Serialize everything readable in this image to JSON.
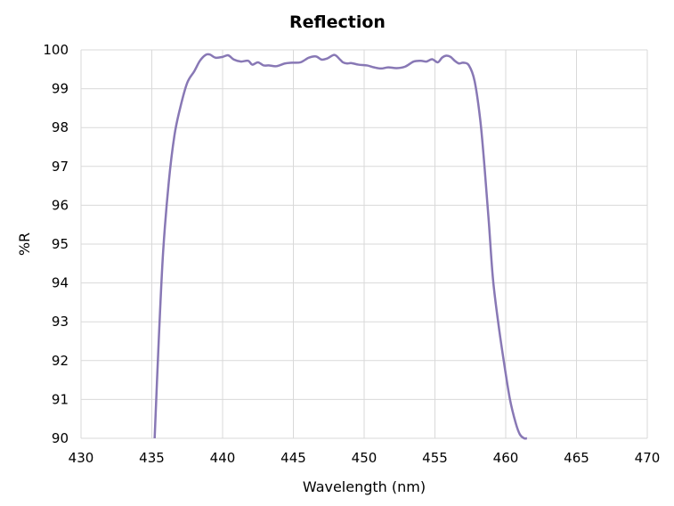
{
  "chart_data": {
    "type": "line",
    "title": "Reflection",
    "xlabel": "Wavelength (nm)",
    "ylabel": "%R",
    "xlim": [
      430,
      470
    ],
    "ylim": [
      90,
      100
    ],
    "xticks": [
      430,
      435,
      440,
      445,
      450,
      455,
      460,
      465,
      470
    ],
    "yticks": [
      90,
      91,
      92,
      93,
      94,
      95,
      96,
      97,
      98,
      99,
      100
    ],
    "grid": true,
    "legend": "none",
    "series": [
      {
        "color": "#8878b5",
        "x": [
          435.2,
          435.5,
          435.8,
          436.2,
          436.6,
          437.0,
          437.5,
          438.0,
          438.4,
          438.8,
          439.1,
          439.5,
          440.0,
          440.4,
          440.8,
          441.3,
          441.8,
          442.1,
          442.5,
          442.9,
          443.3,
          443.8,
          444.4,
          444.9,
          445.5,
          446.1,
          446.6,
          447.0,
          447.4,
          447.9,
          448.3,
          448.5,
          448.8,
          449.1,
          449.6,
          450.2,
          450.7,
          451.2,
          451.7,
          452.3,
          452.9,
          453.5,
          454.0,
          454.4,
          454.8,
          455.2,
          455.5,
          455.8,
          456.1,
          456.4,
          456.7,
          457.0,
          457.4,
          457.8,
          458.2,
          458.5,
          458.8,
          459.1,
          459.5,
          459.9,
          460.3,
          460.7,
          461.0,
          461.3,
          461.5
        ],
        "y": [
          90.0,
          92.6,
          94.8,
          96.6,
          97.8,
          98.5,
          99.15,
          99.45,
          99.72,
          99.87,
          99.88,
          99.8,
          99.82,
          99.86,
          99.75,
          99.7,
          99.72,
          99.62,
          99.68,
          99.6,
          99.6,
          99.58,
          99.65,
          99.67,
          99.68,
          99.8,
          99.83,
          99.75,
          99.78,
          99.87,
          99.75,
          99.68,
          99.65,
          99.66,
          99.62,
          99.6,
          99.55,
          99.52,
          99.55,
          99.53,
          99.57,
          99.7,
          99.72,
          99.7,
          99.76,
          99.68,
          99.8,
          99.85,
          99.82,
          99.72,
          99.65,
          99.67,
          99.6,
          99.2,
          98.2,
          97.0,
          95.6,
          94.1,
          92.9,
          91.9,
          91.0,
          90.4,
          90.1,
          90.0,
          90.0
        ]
      }
    ]
  }
}
